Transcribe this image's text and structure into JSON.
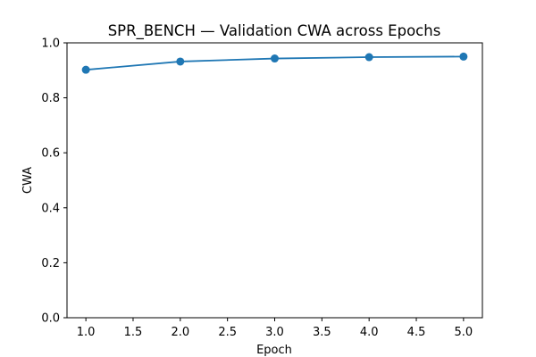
{
  "chart_data": {
    "type": "line",
    "title": "SPR_BENCH — Validation CWA across Epochs",
    "xlabel": "Epoch",
    "ylabel": "CWA",
    "xlim": [
      0.8,
      5.2
    ],
    "ylim": [
      0.0,
      1.0
    ],
    "xticks": [
      "1.0",
      "1.5",
      "2.0",
      "2.5",
      "3.0",
      "3.5",
      "4.0",
      "4.5",
      "5.0"
    ],
    "yticks": [
      "0.0",
      "0.2",
      "0.4",
      "0.6",
      "0.8",
      "1.0"
    ],
    "grid": false,
    "series": [
      {
        "color": "#1f77b4",
        "marker": "circle",
        "x": [
          1.0,
          2.0,
          3.0,
          4.0,
          5.0
        ],
        "y": [
          0.902,
          0.932,
          0.943,
          0.948,
          0.95
        ]
      }
    ]
  }
}
